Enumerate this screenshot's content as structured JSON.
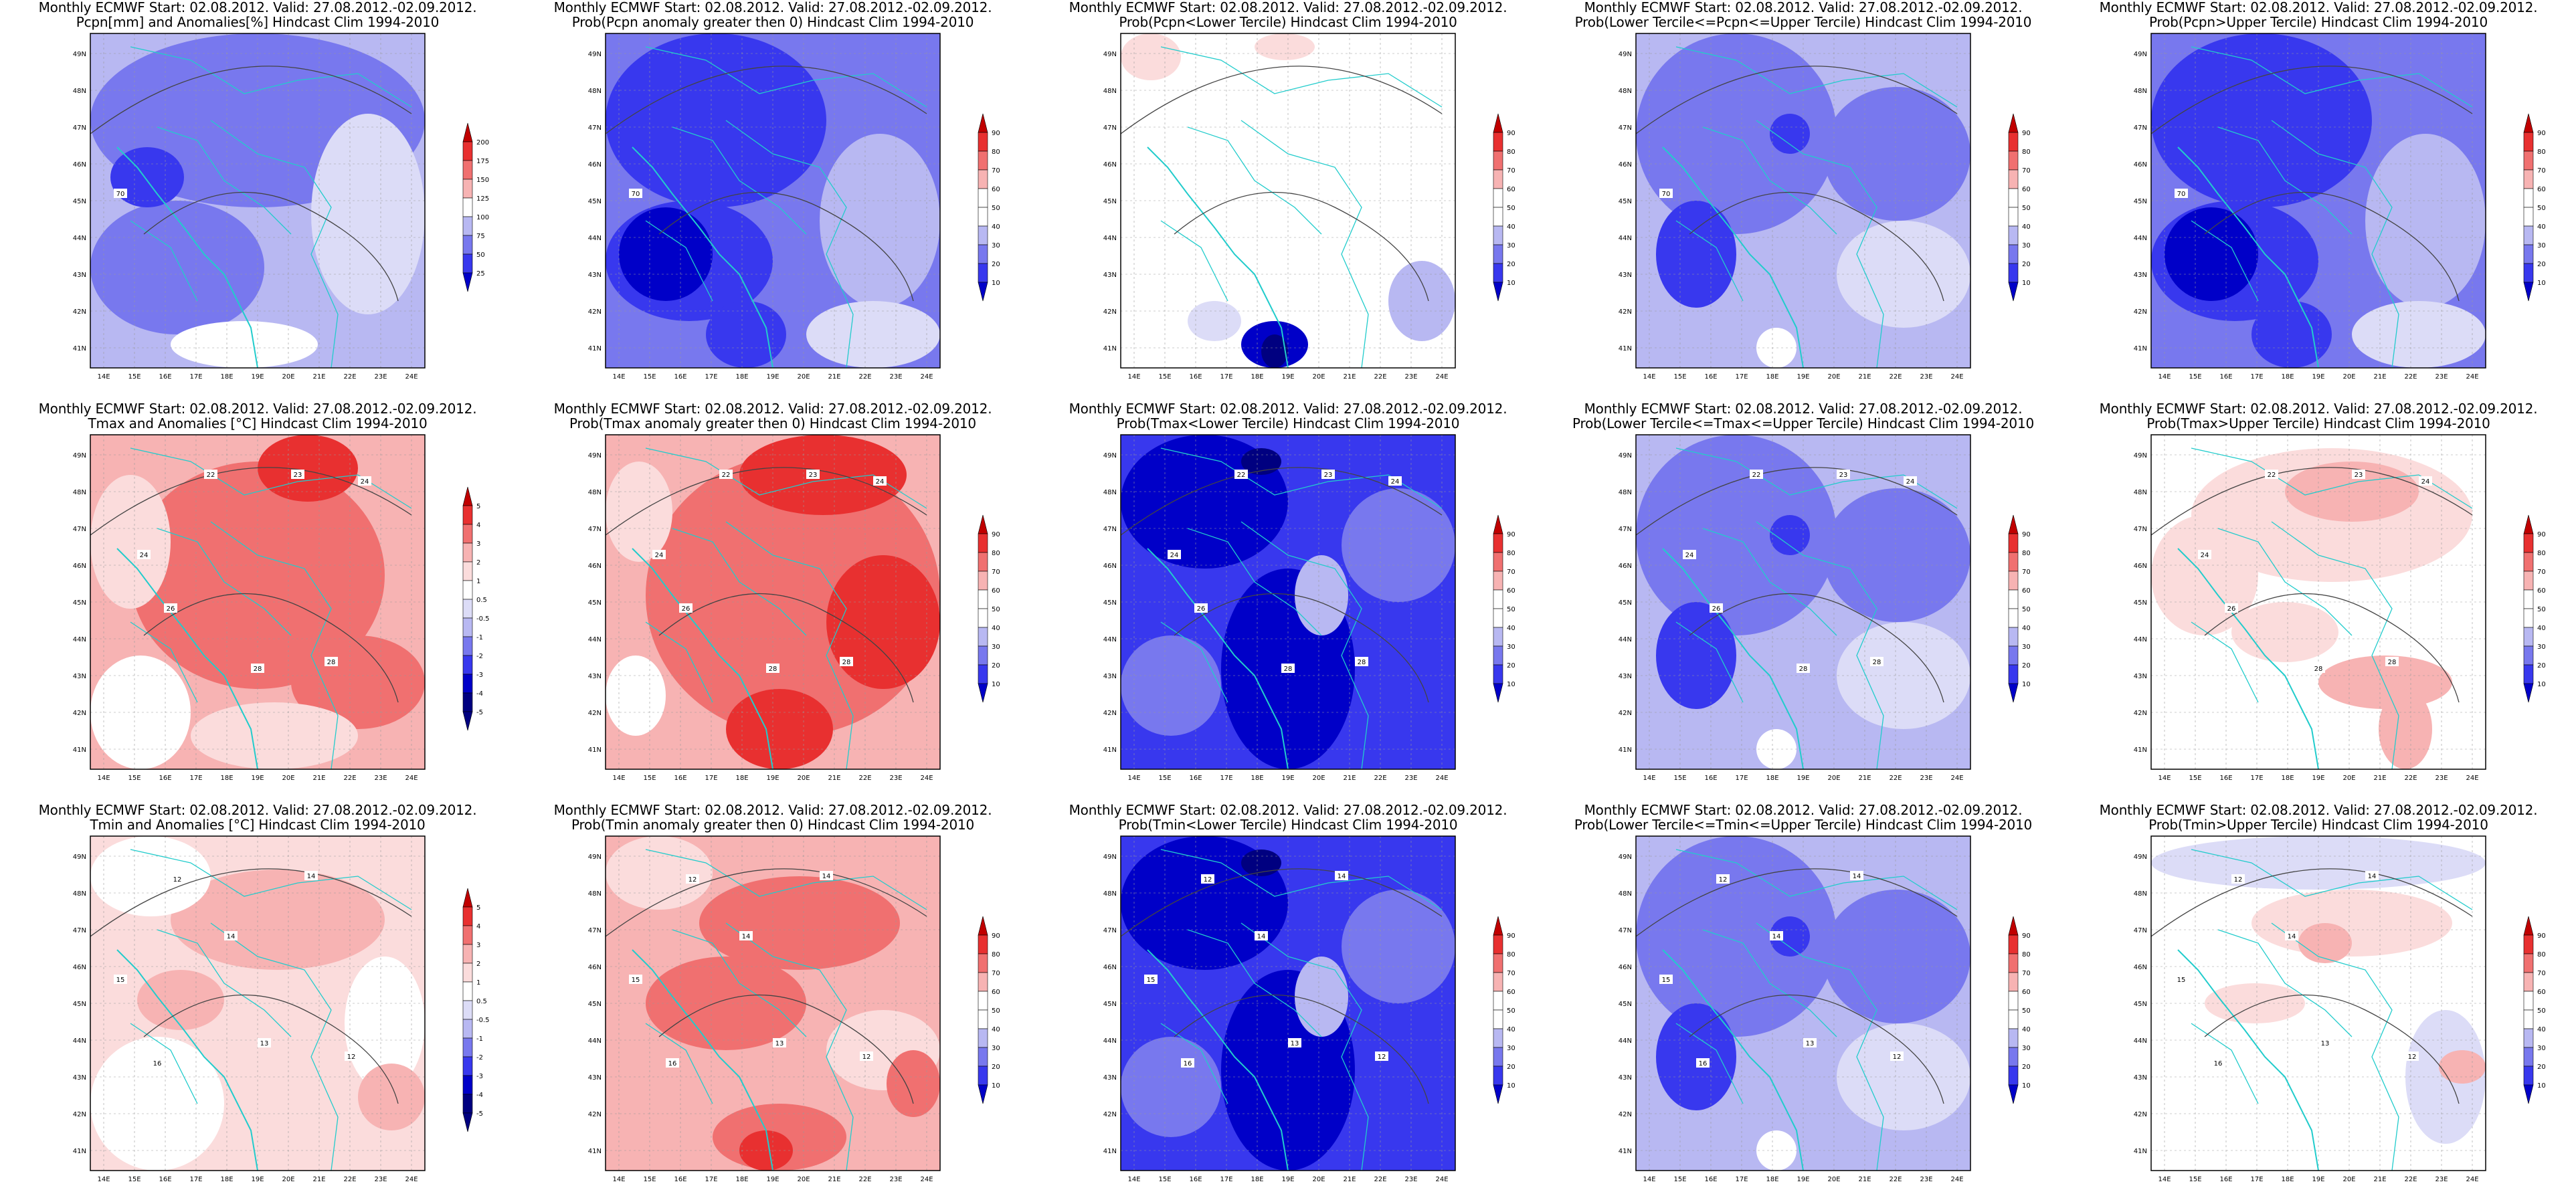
{
  "header_line": "Monthly ECMWF Start: 02.08.2012. Valid: 27.08.2012.-02.09.2012.",
  "lat_labels": [
    "49N",
    "48N",
    "47N",
    "46N",
    "45N",
    "44N",
    "43N",
    "42N",
    "41N"
  ],
  "lon_labels": [
    "14E",
    "15E",
    "16E",
    "17E",
    "18E",
    "19E",
    "20E",
    "21E",
    "22E",
    "23E",
    "24E"
  ],
  "colors": {
    "deep_red": "#c00000",
    "red": "#e83030",
    "mid_red": "#f07070",
    "light_red": "#f7b3b3",
    "pale_red": "#fbdcdc",
    "white": "#ffffff",
    "pale_blue": "#dcdcf7",
    "light_blue": "#b8b8f2",
    "mid_blue": "#7878ee",
    "blue": "#3838ee",
    "deep_blue": "#0000c8",
    "navy": "#000080",
    "coast": "#22cccc",
    "contour": "#444444"
  },
  "legends": {
    "pcpn": [
      "200",
      "175",
      "150",
      "125",
      "100",
      "75",
      "50",
      "25"
    ],
    "temp": [
      "5",
      "4",
      "3",
      "2",
      "1",
      "0.5",
      "-0.5",
      "-1",
      "-2",
      "-3",
      "-4",
      "-5"
    ],
    "prob": [
      "90",
      "80",
      "70",
      "60",
      "50",
      "40",
      "30",
      "20",
      "10"
    ]
  },
  "rows": [
    {
      "panels": [
        {
          "subtitle": "Pcpn[mm] and Anomalies[%] Hindcast Clim 1994-2010",
          "legend": "pcpn",
          "scheme": "blue-anom",
          "contour_labels": [
            "70"
          ]
        },
        {
          "subtitle": "Prob(Pcpn anomaly greater then 0) Hindcast Clim 1994-2010",
          "legend": "prob",
          "scheme": "blue-strong",
          "contour_labels": [
            "70"
          ]
        },
        {
          "subtitle": "Prob(Pcpn<Lower Tercile) Hindcast Clim 1994-2010",
          "legend": "prob",
          "scheme": "white-mix",
          "contour_labels": []
        },
        {
          "subtitle": "Prob(Lower Tercile<=Pcpn<=Upper Tercile) Hindcast Clim 1994-2010",
          "legend": "prob",
          "scheme": "blue-mid",
          "contour_labels": [
            "70"
          ]
        },
        {
          "subtitle": "Prob(Pcpn>Upper Tercile) Hindcast Clim 1994-2010",
          "legend": "prob",
          "scheme": "blue-strong",
          "contour_labels": [
            "70"
          ]
        }
      ]
    },
    {
      "panels": [
        {
          "subtitle": "Tmax and Anomalies [°C] Hindcast Clim 1994-2010",
          "legend": "temp",
          "scheme": "red-anom",
          "contour_labels": [
            "22",
            "23",
            "24",
            "24",
            "26",
            "28",
            "28"
          ]
        },
        {
          "subtitle": "Prob(Tmax anomaly greater then 0) Hindcast Clim 1994-2010",
          "legend": "prob",
          "scheme": "red-strong",
          "contour_labels": [
            "22",
            "23",
            "24",
            "24",
            "26",
            "28",
            "28"
          ]
        },
        {
          "subtitle": "Prob(Tmax<Lower Tercile) Hindcast Clim 1994-2010",
          "legend": "prob",
          "scheme": "blue-deep",
          "contour_labels": [
            "22",
            "23",
            "24",
            "24",
            "26",
            "28",
            "28"
          ]
        },
        {
          "subtitle": "Prob(Lower Tercile<=Tmax<=Upper Tercile) Hindcast Clim 1994-2010",
          "legend": "prob",
          "scheme": "blue-mid",
          "contour_labels": [
            "22",
            "23",
            "24",
            "24",
            "26",
            "28",
            "28"
          ]
        },
        {
          "subtitle": "Prob(Tmax>Upper Tercile) Hindcast Clim 1994-2010",
          "legend": "prob",
          "scheme": "red-light",
          "contour_labels": [
            "22",
            "23",
            "24",
            "24",
            "26",
            "28",
            "28"
          ]
        }
      ]
    },
    {
      "panels": [
        {
          "subtitle": "Tmin and Anomalies [°C] Hindcast Clim 1994-2010",
          "legend": "temp",
          "scheme": "red-pale",
          "contour_labels": [
            "12",
            "14",
            "14",
            "15",
            "16",
            "12",
            "13"
          ]
        },
        {
          "subtitle": "Prob(Tmin anomaly greater then 0) Hindcast Clim 1994-2010",
          "legend": "prob",
          "scheme": "red-mid",
          "contour_labels": [
            "12",
            "14",
            "14",
            "15",
            "16",
            "12",
            "13"
          ]
        },
        {
          "subtitle": "Prob(Tmin<Lower Tercile) Hindcast Clim 1994-2010",
          "legend": "prob",
          "scheme": "blue-deep",
          "contour_labels": [
            "12",
            "14",
            "14",
            "15",
            "16",
            "12",
            "13"
          ]
        },
        {
          "subtitle": "Prob(Lower Tercile<=Tmin<=Upper Tercile) Hindcast Clim 1994-2010",
          "legend": "prob",
          "scheme": "blue-mid",
          "contour_labels": [
            "12",
            "14",
            "14",
            "15",
            "16",
            "12",
            "13"
          ]
        },
        {
          "subtitle": "Prob(Tmin>Upper Tercile) Hindcast Clim 1994-2010",
          "legend": "prob",
          "scheme": "white-red",
          "contour_labels": [
            "12",
            "14",
            "14",
            "15",
            "16",
            "12",
            "13"
          ]
        }
      ]
    }
  ]
}
